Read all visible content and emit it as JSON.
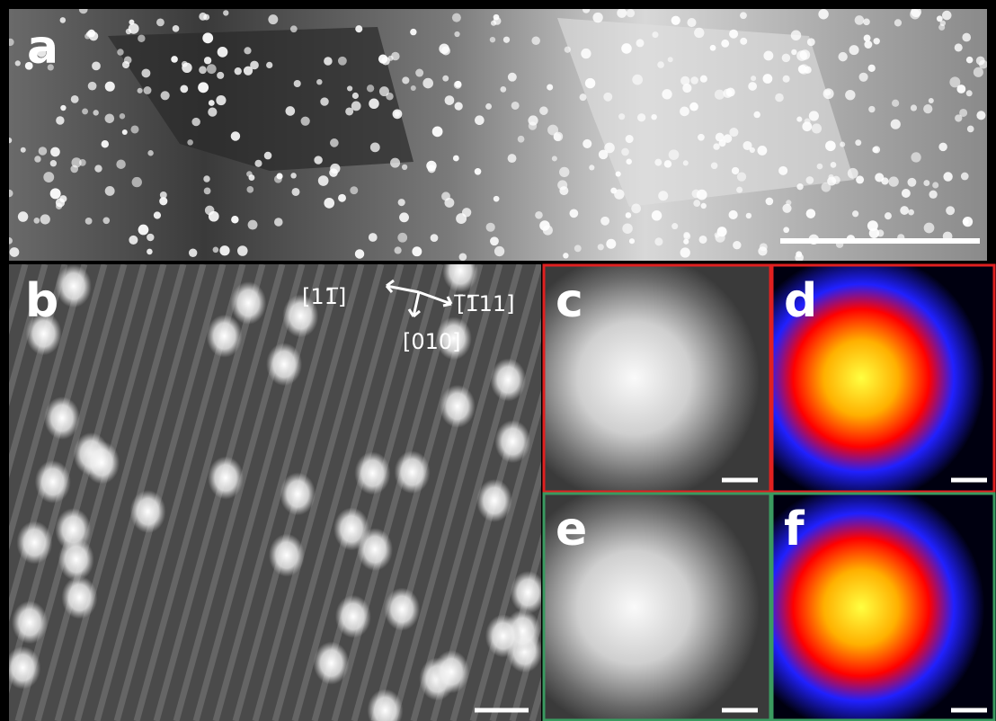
{
  "panels": [
    {
      "label": "a"
    },
    {
      "label": "b"
    },
    {
      "label": "c"
    },
    {
      "label": "d"
    },
    {
      "label": "e"
    },
    {
      "label": "f"
    }
  ],
  "directions": [
    "[11̅]",
    "[̅1̅11]",
    "[010]"
  ]
}
